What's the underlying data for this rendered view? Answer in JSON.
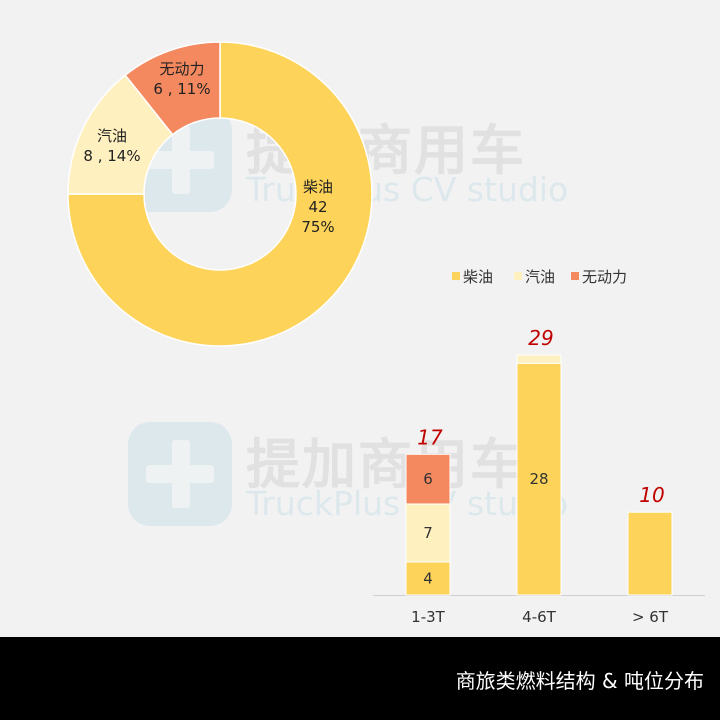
{
  "watermark": {
    "cn": "提加商用车",
    "en": "TruckPlus CV studio"
  },
  "footer": {
    "title": "商旅类燃料结构 & 吨位分布"
  },
  "colors": {
    "diesel": "#fdd35a",
    "gasoline": "#fff0c0",
    "unpowered": "#f4895f",
    "total_label": "#c00000",
    "background": "#f2f2f2"
  },
  "chart_data": [
    {
      "type": "pie",
      "donut": true,
      "categories": [
        "柴油",
        "汽油",
        "无动力"
      ],
      "values": [
        42,
        8,
        6
      ],
      "data_labels": [
        [
          "柴油",
          "42",
          "75%"
        ],
        [
          "汽油",
          "8 , 14%"
        ],
        [
          "无动力",
          "6 , 11%"
        ]
      ]
    },
    {
      "type": "bar",
      "stacked": true,
      "categories": [
        "1-3T",
        "4-6T",
        "> 6T"
      ],
      "series": [
        {
          "name": "柴油",
          "values": [
            4,
            28,
            10
          ]
        },
        {
          "name": "汽油",
          "values": [
            7,
            1,
            0
          ]
        },
        {
          "name": "无动力",
          "values": [
            6,
            0,
            0
          ]
        }
      ],
      "segment_labels": [
        [
          "4",
          "28",
          ""
        ],
        [
          "7",
          "",
          ""
        ],
        [
          "6",
          "",
          ""
        ]
      ],
      "totals": [
        17,
        29,
        10
      ],
      "total_labels": [
        "17",
        "29",
        "10"
      ],
      "legend": [
        "柴油",
        "汽油",
        "无动力"
      ],
      "legend_position": "top"
    }
  ]
}
